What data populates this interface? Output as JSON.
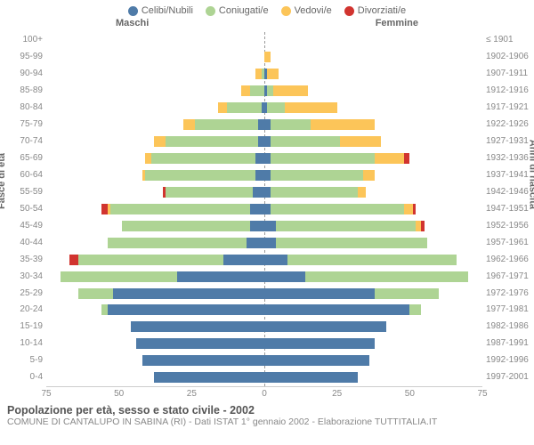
{
  "legend": {
    "items": [
      {
        "label": "Celibi/Nubili",
        "color": "#4f7ba8"
      },
      {
        "label": "Coniugati/e",
        "color": "#aed494"
      },
      {
        "label": "Vedovi/e",
        "color": "#fcc559"
      },
      {
        "label": "Divorziati/e",
        "color": "#d1342f"
      }
    ]
  },
  "headers": {
    "male": "Maschi",
    "female": "Femmine"
  },
  "axis": {
    "left_title": "Fasce di età",
    "right_title": "Anni di nascita"
  },
  "xaxis": {
    "max": 75,
    "ticks": [
      75,
      50,
      25,
      0,
      25,
      50,
      75
    ]
  },
  "colors": {
    "celibi": "#4f7ba8",
    "coniugati": "#aed494",
    "vedovi": "#fcc559",
    "divorziati": "#d1342f",
    "bg": "#ffffff",
    "grid": "#cccccc",
    "centerline": "#999999",
    "text_muted": "#888888"
  },
  "age_labels": [
    "100+",
    "95-99",
    "90-94",
    "85-89",
    "80-84",
    "75-79",
    "70-74",
    "65-69",
    "60-64",
    "55-59",
    "50-54",
    "45-49",
    "40-44",
    "35-39",
    "30-34",
    "25-29",
    "20-24",
    "15-19",
    "10-14",
    "5-9",
    "0-4"
  ],
  "year_labels": [
    "≤ 1901",
    "1902-1906",
    "1907-1911",
    "1912-1916",
    "1917-1921",
    "1922-1926",
    "1927-1931",
    "1932-1936",
    "1937-1941",
    "1942-1946",
    "1947-1951",
    "1952-1956",
    "1957-1961",
    "1962-1966",
    "1967-1971",
    "1972-1976",
    "1977-1981",
    "1982-1986",
    "1987-1991",
    "1992-1996",
    "1997-2001"
  ],
  "rows": [
    {
      "m": {
        "cel": 0,
        "con": 0,
        "ved": 0,
        "div": 0
      },
      "f": {
        "cel": 0,
        "con": 0,
        "ved": 0,
        "div": 0
      }
    },
    {
      "m": {
        "cel": 0,
        "con": 0,
        "ved": 0,
        "div": 0
      },
      "f": {
        "cel": 0,
        "con": 0,
        "ved": 2,
        "div": 0
      }
    },
    {
      "m": {
        "cel": 0,
        "con": 1,
        "ved": 2,
        "div": 0
      },
      "f": {
        "cel": 1,
        "con": 0,
        "ved": 4,
        "div": 0
      }
    },
    {
      "m": {
        "cel": 0,
        "con": 5,
        "ved": 3,
        "div": 0
      },
      "f": {
        "cel": 1,
        "con": 2,
        "ved": 12,
        "div": 0
      }
    },
    {
      "m": {
        "cel": 1,
        "con": 12,
        "ved": 3,
        "div": 0
      },
      "f": {
        "cel": 1,
        "con": 6,
        "ved": 18,
        "div": 0
      }
    },
    {
      "m": {
        "cel": 2,
        "con": 22,
        "ved": 4,
        "div": 0
      },
      "f": {
        "cel": 2,
        "con": 14,
        "ved": 22,
        "div": 0
      }
    },
    {
      "m": {
        "cel": 2,
        "con": 32,
        "ved": 4,
        "div": 0
      },
      "f": {
        "cel": 2,
        "con": 24,
        "ved": 14,
        "div": 0
      }
    },
    {
      "m": {
        "cel": 3,
        "con": 36,
        "ved": 2,
        "div": 0
      },
      "f": {
        "cel": 2,
        "con": 36,
        "ved": 10,
        "div": 2
      }
    },
    {
      "m": {
        "cel": 3,
        "con": 38,
        "ved": 1,
        "div": 0
      },
      "f": {
        "cel": 2,
        "con": 32,
        "ved": 4,
        "div": 0
      }
    },
    {
      "m": {
        "cel": 4,
        "con": 30,
        "ved": 0,
        "div": 1
      },
      "f": {
        "cel": 2,
        "con": 30,
        "ved": 3,
        "div": 0
      }
    },
    {
      "m": {
        "cel": 5,
        "con": 48,
        "ved": 1,
        "div": 2
      },
      "f": {
        "cel": 2,
        "con": 46,
        "ved": 3,
        "div": 1
      }
    },
    {
      "m": {
        "cel": 5,
        "con": 44,
        "ved": 0,
        "div": 0
      },
      "f": {
        "cel": 4,
        "con": 48,
        "ved": 2,
        "div": 1
      }
    },
    {
      "m": {
        "cel": 6,
        "con": 48,
        "ved": 0,
        "div": 0
      },
      "f": {
        "cel": 4,
        "con": 52,
        "ved": 0,
        "div": 0
      }
    },
    {
      "m": {
        "cel": 14,
        "con": 50,
        "ved": 0,
        "div": 3
      },
      "f": {
        "cel": 8,
        "con": 58,
        "ved": 0,
        "div": 0
      }
    },
    {
      "m": {
        "cel": 30,
        "con": 40,
        "ved": 0,
        "div": 0
      },
      "f": {
        "cel": 14,
        "con": 56,
        "ved": 0,
        "div": 0
      }
    },
    {
      "m": {
        "cel": 52,
        "con": 12,
        "ved": 0,
        "div": 0
      },
      "f": {
        "cel": 38,
        "con": 22,
        "ved": 0,
        "div": 0
      }
    },
    {
      "m": {
        "cel": 54,
        "con": 2,
        "ved": 0,
        "div": 0
      },
      "f": {
        "cel": 50,
        "con": 4,
        "ved": 0,
        "div": 0
      }
    },
    {
      "m": {
        "cel": 46,
        "con": 0,
        "ved": 0,
        "div": 0
      },
      "f": {
        "cel": 42,
        "con": 0,
        "ved": 0,
        "div": 0
      }
    },
    {
      "m": {
        "cel": 44,
        "con": 0,
        "ved": 0,
        "div": 0
      },
      "f": {
        "cel": 38,
        "con": 0,
        "ved": 0,
        "div": 0
      }
    },
    {
      "m": {
        "cel": 42,
        "con": 0,
        "ved": 0,
        "div": 0
      },
      "f": {
        "cel": 36,
        "con": 0,
        "ved": 0,
        "div": 0
      }
    },
    {
      "m": {
        "cel": 38,
        "con": 0,
        "ved": 0,
        "div": 0
      },
      "f": {
        "cel": 32,
        "con": 0,
        "ved": 0,
        "div": 0
      }
    }
  ],
  "footer": {
    "title": "Popolazione per età, sesso e stato civile - 2002",
    "subtitle": "COMUNE DI CANTALUPO IN SABINA (RI) - Dati ISTAT 1° gennaio 2002 - Elaborazione TUTTITALIA.IT"
  }
}
